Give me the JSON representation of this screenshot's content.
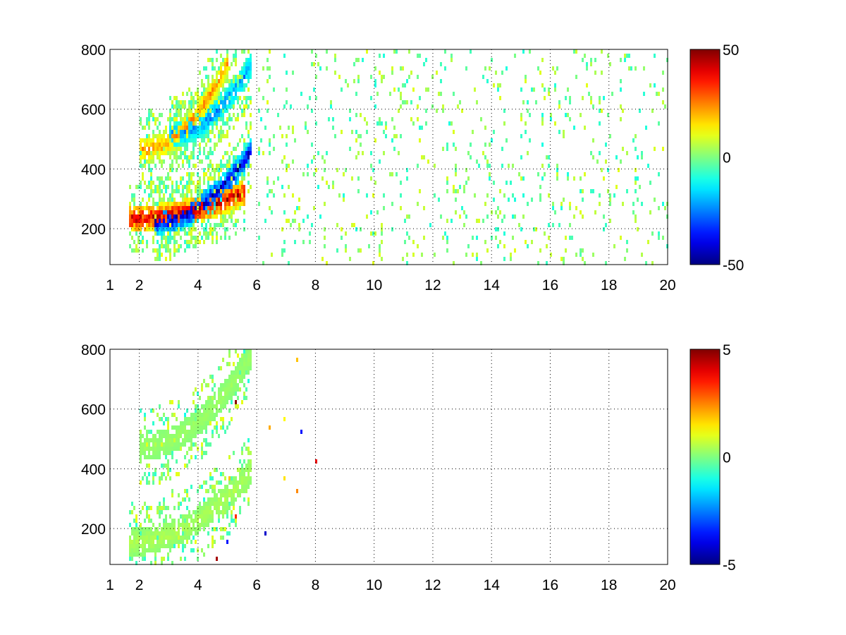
{
  "figure": {
    "background": "#ffffff",
    "colormap": "jet"
  },
  "chart_data": [
    {
      "type": "heatmap",
      "title": "",
      "xlabel": "",
      "ylabel": "",
      "xlim": [
        1,
        20
      ],
      "ylim": [
        80,
        800
      ],
      "xticks": [
        1,
        2,
        4,
        6,
        8,
        10,
        12,
        14,
        16,
        18,
        20
      ],
      "xtick_labels": [
        "1",
        "2",
        "4",
        "6",
        "8",
        "10",
        "12",
        "14",
        "16",
        "18",
        "20"
      ],
      "yticks": [
        200,
        400,
        600,
        800
      ],
      "ytick_labels": [
        "200",
        "400",
        "600",
        "800"
      ],
      "grid": true,
      "colorbar": {
        "min": -50,
        "max": 50,
        "ticks": [
          50,
          0,
          -50
        ],
        "tick_labels": [
          "50",
          "0",
          "-50"
        ]
      },
      "features": [
        {
          "description_of": "strong positive band",
          "x": [
            1.6,
            5.6
          ],
          "y_start": 240,
          "y_end": 330,
          "value": 45
        },
        {
          "description_of": "strong negative band",
          "x": [
            2.5,
            5.8
          ],
          "y_start": 230,
          "y_end": 470,
          "value": -45
        },
        {
          "description_of": "upper positive band",
          "x": [
            2.0,
            5.0
          ],
          "y_start": 470,
          "y_end": 760,
          "value": 25
        },
        {
          "description_of": "upper negative band",
          "x": [
            3.0,
            5.8
          ],
          "y_start": 520,
          "y_end": 760,
          "value": -25
        },
        {
          "description_of": "sparse noise",
          "x": [
            6.0,
            20.0
          ],
          "y": [
            80,
            800
          ],
          "value_range": [
            -10,
            10
          ]
        }
      ]
    },
    {
      "type": "heatmap",
      "title": "",
      "xlabel": "",
      "ylabel": "",
      "xlim": [
        1,
        20
      ],
      "ylim": [
        80,
        800
      ],
      "xticks": [
        1,
        2,
        4,
        6,
        8,
        10,
        12,
        14,
        16,
        18,
        20
      ],
      "xtick_labels": [
        "1",
        "2",
        "4",
        "6",
        "8",
        "10",
        "12",
        "14",
        "16",
        "18",
        "20"
      ],
      "yticks": [
        200,
        400,
        600,
        800
      ],
      "ytick_labels": [
        "200",
        "400",
        "600",
        "800"
      ],
      "grid": true,
      "colorbar": {
        "min": -5,
        "max": 5,
        "ticks": [
          5,
          0,
          -5
        ],
        "tick_labels": [
          "5",
          "0",
          "-5"
        ]
      },
      "features": [
        {
          "description_of": "lower cluster",
          "x": [
            1.6,
            5.8
          ],
          "y_start": 160,
          "y_end": 400,
          "value": 0.5
        },
        {
          "description_of": "upper cluster",
          "x": [
            2.0,
            5.8
          ],
          "y_start": 480,
          "y_end": 790,
          "value": 0.3
        },
        {
          "description_of": "scattered outliers",
          "x": [
            1.9,
            8.0
          ],
          "y": [
            100,
            800
          ],
          "value_range": [
            -5,
            5
          ]
        }
      ]
    }
  ]
}
